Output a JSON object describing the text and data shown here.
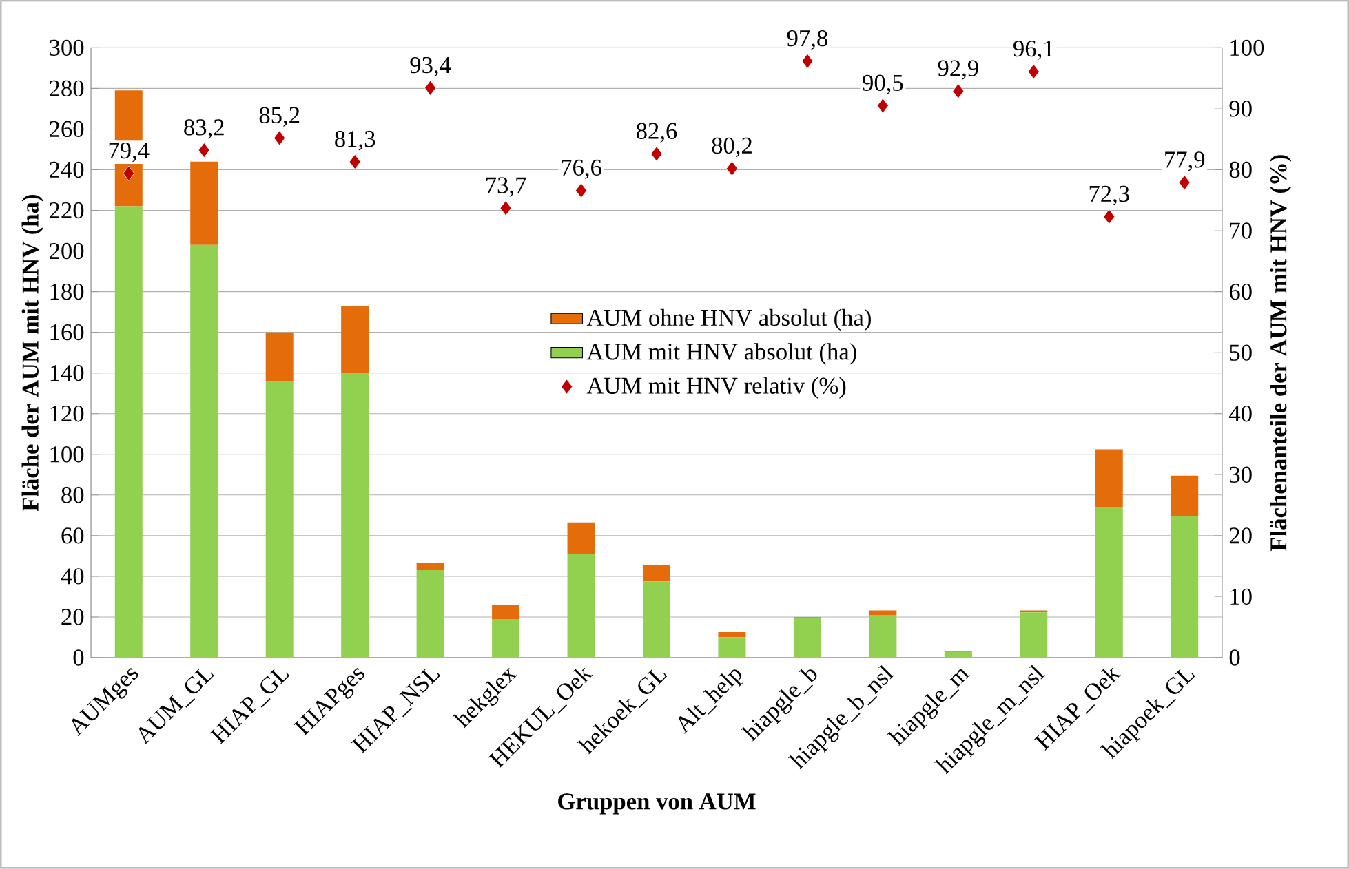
{
  "chart_data": {
    "type": "bar",
    "stacked": true,
    "xlabel": "Gruppen von AUM",
    "ylabel": "Fläche der AUM mit HNV (ha)",
    "y2label": "Flächenanteile der AUM mit HNV (%)",
    "categories": [
      "AUMges",
      "AUM_GL",
      "HIAP_GL",
      "HIAPges",
      "HIAP_NSL",
      "hekglex",
      "HEKUL_Oek",
      "hekoek_GL",
      "Alt_help",
      "hiapgle_b",
      "hiapgle_b_nsl",
      "hiapgle_m",
      "hiapgle_m_nsl",
      "HIAP_Oek",
      "hiapoek_GL"
    ],
    "series": [
      {
        "name": "AUM mit HNV absolut (ha)",
        "color": "#92d050",
        "values": [
          222,
          203,
          136,
          140,
          43,
          19,
          51,
          37.5,
          10,
          19.5,
          21,
          2.8,
          22.3,
          74,
          69.5
        ]
      },
      {
        "name": "AUM ohne HNV absolut (ha)",
        "color": "#e46c0a",
        "values": [
          57,
          41,
          24,
          33,
          3.5,
          7,
          15.5,
          8,
          2.5,
          0.4,
          2.2,
          0.2,
          0.9,
          28.5,
          20
        ]
      },
      {
        "name": "AUM mit HNV relativ (%)",
        "type": "scatter",
        "axis": "y2",
        "color": "#c00000",
        "values": [
          79.4,
          83.2,
          85.2,
          81.3,
          93.4,
          73.7,
          76.6,
          82.6,
          80.2,
          97.8,
          90.5,
          92.9,
          96.1,
          72.3,
          77.9
        ],
        "value_labels": [
          "79,4",
          "83,2",
          "85,2",
          "81,3",
          "93,4",
          "73,7",
          "76,6",
          "82,6",
          "80,2",
          "97,8",
          "90,5",
          "92,9",
          "96,1",
          "72,3",
          "77,9"
        ]
      }
    ],
    "ylim": [
      0,
      300
    ],
    "yticks": [
      0,
      20,
      40,
      60,
      80,
      100,
      120,
      140,
      160,
      180,
      200,
      220,
      240,
      260,
      280,
      300
    ],
    "y2lim": [
      0,
      100
    ],
    "y2ticks": [
      0,
      10,
      20,
      30,
      40,
      50,
      60,
      70,
      80,
      90,
      100
    ],
    "grid": "y",
    "legend": "center",
    "marker": "diamond"
  }
}
